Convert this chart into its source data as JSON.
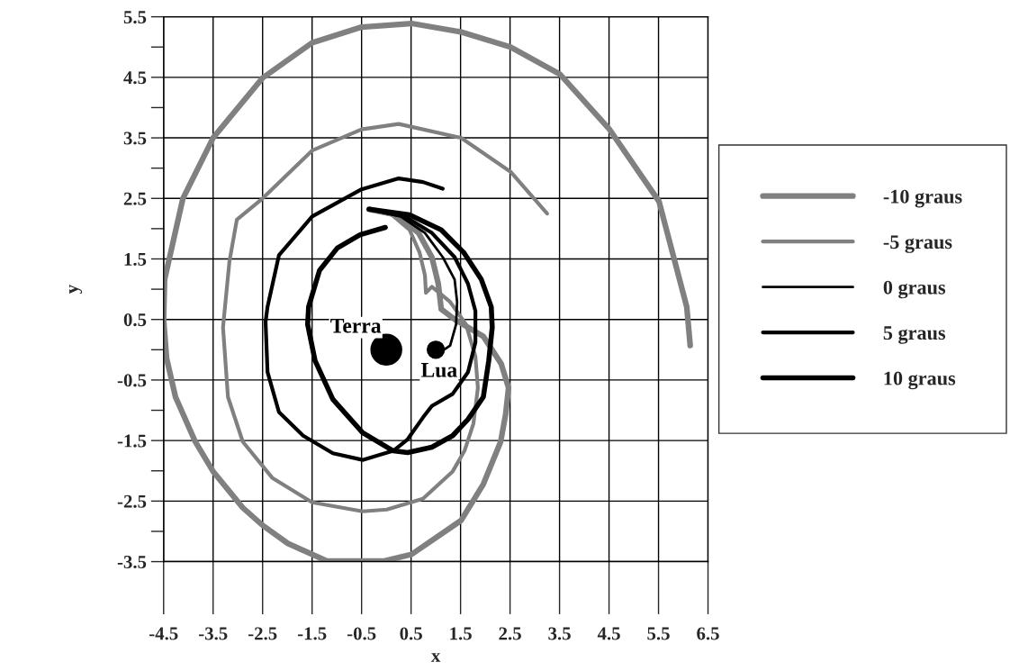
{
  "chart_data": {
    "type": "line",
    "xlabel": "x",
    "ylabel": "y",
    "xlim": [
      -4.5,
      6.5
    ],
    "ylim": [
      -3.5,
      5.5
    ],
    "xticks": [
      -4.5,
      -3.5,
      -2.5,
      -1.5,
      -0.5,
      0.5,
      1.5,
      2.5,
      3.5,
      4.5,
      5.5,
      6.5
    ],
    "yticks": [
      -3.5,
      {
        "value": -3,
        "label": null
      },
      -2.5,
      {
        "value": -2,
        "label": null
      },
      -1.5,
      {
        "value": -1,
        "label": null
      },
      -0.5,
      {
        "value": 0,
        "label": null
      },
      0.5,
      {
        "value": 1,
        "label": null
      },
      1.5,
      {
        "value": 2,
        "label": null
      },
      2.5,
      {
        "value": 3,
        "label": null
      },
      3.5,
      {
        "value": 4,
        "label": null
      },
      4.5,
      {
        "value": 5,
        "label": null
      },
      5.5
    ],
    "grid": true,
    "legend": "right",
    "marker": "none",
    "line_style": "solid",
    "series": [
      {
        "name": "-10 graus",
        "color": "#808080",
        "x": [
          -0.35,
          0.2,
          0.65,
          0.92,
          1.05,
          1.11,
          1.4,
          1.96,
          2.32,
          2.47,
          2.41,
          2.31,
          1.96,
          1.51,
          0.51,
          -0.04,
          -1.2,
          -1.99,
          -2.5,
          -2.9,
          -3.5,
          -3.86,
          -4.26,
          -4.44,
          -4.5,
          -4.48,
          -4.11,
          -3.5,
          -2.5,
          -1.5,
          -0.5,
          0.51,
          1.51,
          2.51,
          3.51,
          4.51,
          5.51,
          6.07,
          6.14
        ],
        "values": [
          2.32,
          2.23,
          1.93,
          1.53,
          1.09,
          0.67,
          0.49,
          0.22,
          -0.23,
          -0.63,
          -1.07,
          -1.52,
          -2.22,
          -2.82,
          -3.38,
          -3.49,
          -3.49,
          -3.2,
          -2.9,
          -2.61,
          -2.01,
          -1.52,
          -0.78,
          -0.14,
          0.5,
          1.16,
          2.5,
          3.5,
          4.49,
          5.07,
          5.33,
          5.39,
          5.25,
          5.0,
          4.55,
          3.64,
          2.45,
          0.71,
          0.07
        ]
      },
      {
        "name": "-5 graus",
        "color": "#808080",
        "x": [
          -0.35,
          0.11,
          0.47,
          0.67,
          0.78,
          0.8,
          0.92,
          1.29,
          1.61,
          1.8,
          1.85,
          1.76,
          1.58,
          1.34,
          0.74,
          0.01,
          -0.48,
          -1.5,
          -2.3,
          -2.9,
          -3.2,
          -3.3,
          -3.17,
          -3.02,
          -2.5,
          -1.5,
          -0.5,
          0.25,
          1.51,
          2.51,
          3.25
        ],
        "values": [
          2.32,
          2.23,
          1.98,
          1.61,
          1.23,
          0.94,
          1.04,
          0.79,
          0.42,
          -0.11,
          -0.63,
          -1.22,
          -1.67,
          -2.01,
          -2.46,
          -2.64,
          -2.67,
          -2.52,
          -2.12,
          -1.52,
          -0.78,
          0.37,
          1.46,
          2.15,
          2.5,
          3.29,
          3.64,
          3.73,
          3.5,
          2.94,
          2.25
        ]
      },
      {
        "name": "0 graus",
        "color": "#000000",
        "x": [
          -0.35,
          0.29,
          0.78,
          1.14,
          1.38,
          1.43,
          1.41,
          1.29,
          1.11
        ],
        "values": [
          2.32,
          2.2,
          1.93,
          1.53,
          1.16,
          0.79,
          0.42,
          0.07,
          -0.03
        ]
      },
      {
        "name": "5 graus",
        "color": "#000000",
        "x": [
          -0.35,
          0.38,
          0.92,
          1.38,
          1.65,
          1.8,
          1.8,
          1.65,
          1.34,
          0.92,
          0.74,
          0.43,
          0.14,
          -0.48,
          -1.08,
          -1.68,
          -2.17,
          -2.4,
          -2.44,
          -2.4,
          -2.17,
          -1.5,
          -0.5,
          0.25,
          0.74,
          1.14
        ],
        "values": [
          2.32,
          2.2,
          1.93,
          1.53,
          1.09,
          0.64,
          0.12,
          -0.37,
          -0.73,
          -0.93,
          -1.12,
          -1.48,
          -1.67,
          -1.82,
          -1.71,
          -1.42,
          -1.03,
          -0.37,
          0.46,
          0.71,
          1.56,
          2.2,
          2.65,
          2.83,
          2.77,
          2.66
        ]
      },
      {
        "name": "10 graus",
        "color": "#000000",
        "x": [
          -0.35,
          0.47,
          1.11,
          1.56,
          1.92,
          2.12,
          2.14,
          2.07,
          1.96,
          1.65,
          1.34,
          0.92,
          0.43,
          0.14,
          -0.48,
          -1.08,
          -1.44,
          -1.59,
          -1.57,
          -1.35,
          -0.99,
          -0.53,
          -0.02
        ],
        "values": [
          2.32,
          2.23,
          1.98,
          1.61,
          1.16,
          0.71,
          0.37,
          -0.18,
          -0.78,
          -1.15,
          -1.42,
          -1.61,
          -1.7,
          -1.67,
          -1.37,
          -0.82,
          -0.18,
          0.42,
          0.71,
          1.31,
          1.68,
          1.9,
          2.02
        ]
      },
      {
        "name": "Terra",
        "type": "bubble",
        "color": "#000000",
        "marker": "circle",
        "x": [
          0
        ],
        "values": [
          0
        ],
        "sizes": [
          1
        ]
      },
      {
        "name": "Lua",
        "type": "bubble",
        "color": "#000000",
        "marker": "circle",
        "x": [
          1
        ],
        "values": [
          0
        ],
        "sizes": [
          0.31
        ]
      }
    ]
  }
}
